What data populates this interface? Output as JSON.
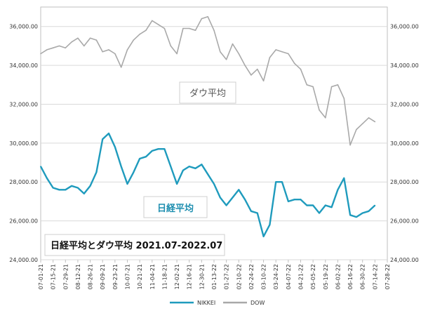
{
  "chart_data": {
    "type": "line",
    "title": "日経平均とダウ平均 2021.07-2022.07",
    "ylim": [
      24000,
      37000
    ],
    "yticks": [
      "24,000.00",
      "26,000.00",
      "28,000.00",
      "30,000.00",
      "32,000.00",
      "34,000.00",
      "36,000.00"
    ],
    "ytick_values": [
      24000,
      26000,
      28000,
      30000,
      32000,
      34000,
      36000
    ],
    "xticks": [
      "07-01-21",
      "07-15-21",
      "07-29-21",
      "08-12-21",
      "08-26-21",
      "09-09-21",
      "09-23-21",
      "10-07-21",
      "10-21-21",
      "11-04-21",
      "11-18-21",
      "12-02-21",
      "12-16-21",
      "12-30-21",
      "01-13-22",
      "01-27-22",
      "02-10-22",
      "02-24-22",
      "03-10-22",
      "03-24-22",
      "04-07-22",
      "04-21-22",
      "05-05-22",
      "05-19-22",
      "06-02-22",
      "06-16-22",
      "06-30-22",
      "07-14-22",
      "07-28-22"
    ],
    "grid": true,
    "legend_position": "bottom",
    "series": [
      {
        "name": "NIKKEI",
        "color": "#1f9bbd",
        "label": "日経平均",
        "x": [
          "07-01-21",
          "07-08-21",
          "07-15-21",
          "07-22-21",
          "07-29-21",
          "08-05-21",
          "08-12-21",
          "08-19-21",
          "08-26-21",
          "09-02-21",
          "09-09-21",
          "09-16-21",
          "09-23-21",
          "09-30-21",
          "10-07-21",
          "10-14-21",
          "10-21-21",
          "10-28-21",
          "11-04-21",
          "11-11-21",
          "11-18-21",
          "11-25-21",
          "12-02-21",
          "12-09-21",
          "12-16-21",
          "12-23-21",
          "12-30-21",
          "01-06-22",
          "01-13-22",
          "01-20-22",
          "01-27-22",
          "02-03-22",
          "02-10-22",
          "02-17-22",
          "02-24-22",
          "03-03-22",
          "03-10-22",
          "03-17-22",
          "03-24-22",
          "03-31-22",
          "04-07-22",
          "04-14-22",
          "04-21-22",
          "04-28-22",
          "05-05-22",
          "05-12-22",
          "05-19-22",
          "05-26-22",
          "06-02-22",
          "06-09-22",
          "06-16-22",
          "06-23-22",
          "06-30-22",
          "07-07-22",
          "07-14-22"
        ],
        "values": [
          28800,
          28200,
          27700,
          27600,
          27600,
          27800,
          27700,
          27400,
          27800,
          28500,
          30200,
          30500,
          29800,
          28800,
          27900,
          28500,
          29200,
          29300,
          29600,
          29700,
          29700,
          28800,
          27900,
          28600,
          28800,
          28700,
          28900,
          28400,
          27900,
          27200,
          26800,
          27200,
          27600,
          27100,
          26500,
          26400,
          25200,
          25800,
          28000,
          28000,
          27000,
          27100,
          27100,
          26800,
          26800,
          26400,
          26800,
          26700,
          27600,
          28200,
          26300,
          26200,
          26400,
          26500,
          26800
        ]
      },
      {
        "name": "DOW",
        "color": "#a9a9a9",
        "label": "ダウ平均",
        "x": [
          "07-01-21",
          "07-08-21",
          "07-15-21",
          "07-22-21",
          "07-29-21",
          "08-05-21",
          "08-12-21",
          "08-19-21",
          "08-26-21",
          "09-02-21",
          "09-09-21",
          "09-16-21",
          "09-23-21",
          "09-30-21",
          "10-07-21",
          "10-14-21",
          "10-21-21",
          "10-28-21",
          "11-04-21",
          "11-11-21",
          "11-18-21",
          "11-25-21",
          "12-02-21",
          "12-09-21",
          "12-16-21",
          "12-23-21",
          "12-30-21",
          "01-06-22",
          "01-13-22",
          "01-20-22",
          "01-27-22",
          "02-03-22",
          "02-10-22",
          "02-17-22",
          "02-24-22",
          "03-03-22",
          "03-10-22",
          "03-17-22",
          "03-24-22",
          "03-31-22",
          "04-07-22",
          "04-14-22",
          "04-21-22",
          "04-28-22",
          "05-05-22",
          "05-12-22",
          "05-19-22",
          "05-26-22",
          "06-02-22",
          "06-09-22",
          "06-16-22",
          "06-23-22",
          "06-30-22",
          "07-07-22",
          "07-14-22"
        ],
        "values": [
          34600,
          34800,
          34900,
          35000,
          34900,
          35200,
          35400,
          35000,
          35400,
          35300,
          34700,
          34800,
          34600,
          33900,
          34800,
          35300,
          35600,
          35800,
          36300,
          36100,
          35900,
          35000,
          34600,
          35900,
          35900,
          35800,
          36400,
          36500,
          35800,
          34700,
          34300,
          35100,
          34600,
          34000,
          33500,
          33800,
          33200,
          34400,
          34800,
          34700,
          34600,
          34100,
          33800,
          33000,
          32900,
          31700,
          31300,
          32900,
          33000,
          32300,
          29900,
          30700,
          31000,
          31300,
          31100
        ]
      }
    ],
    "legend": [
      {
        "name": "NIKKEI",
        "color": "#1f9bbd"
      },
      {
        "name": "DOW",
        "color": "#a9a9a9"
      }
    ]
  }
}
